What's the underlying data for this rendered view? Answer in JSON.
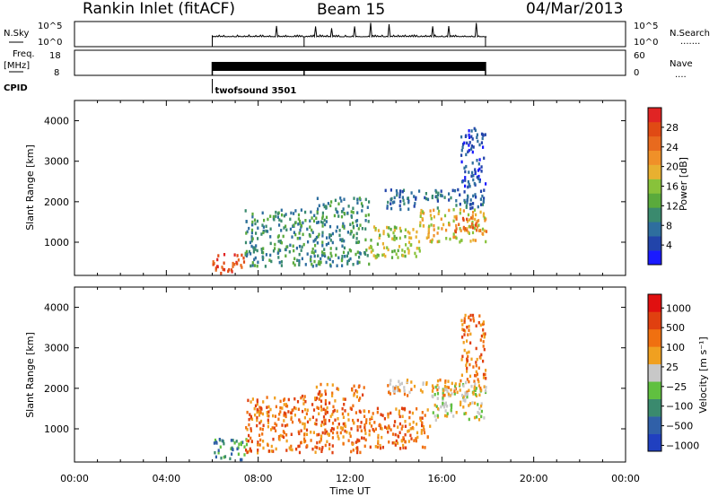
{
  "header": {
    "station": "Rankin Inlet (fitACF)",
    "beam": "Beam 15",
    "date": "04/Mar/2013"
  },
  "sky_panel": {
    "left_label": "N.Sky",
    "right_label": "N.Search",
    "right_legend": ".......",
    "left_ticks": [
      "10^5",
      "10^0"
    ],
    "right_ticks": [
      "10^5",
      "10^0"
    ]
  },
  "freq_panel": {
    "left_label": "Freq.",
    "left_unit": "[MHz]",
    "right_label": "Nave",
    "right_legend": "....",
    "left_ticks": [
      "18",
      "8"
    ],
    "right_ticks": [
      "60",
      "0"
    ]
  },
  "cpid": {
    "label": "CPID",
    "program": "twofsound 3501"
  },
  "chart_data": [
    {
      "type": "heatmap",
      "quantity": "Power",
      "ylabel": "Slant Range [km]",
      "xlabel": "Time UT",
      "x_range_hours": [
        0,
        24
      ],
      "y_range_km": [
        180,
        4500
      ],
      "y_ticks": [
        1000,
        2000,
        3000,
        4000
      ],
      "colorbar": {
        "label": "Power [dB]",
        "range": [
          0,
          32
        ],
        "ticks": [
          "4",
          "8",
          "12",
          "16",
          "20",
          "24",
          "28"
        ],
        "colors": [
          "#1a1aff",
          "#2244aa",
          "#2e6e9e",
          "#3a8a6e",
          "#5aaa3c",
          "#88c23a",
          "#e8b030",
          "#f09028",
          "#e86a1e",
          "#e04a14",
          "#e02424"
        ]
      },
      "scatter_blocks": [
        {
          "t0": 6.0,
          "t1": 7.4,
          "r0": 200,
          "r1": 700,
          "level": 9
        },
        {
          "t0": 7.4,
          "t1": 10.5,
          "r0": 400,
          "r1": 1800,
          "level": 3
        },
        {
          "t0": 10.5,
          "t1": 12.8,
          "r0": 400,
          "r1": 2100,
          "level": 3
        },
        {
          "t0": 12.8,
          "t1": 15.0,
          "r0": 600,
          "r1": 1400,
          "level": 5
        },
        {
          "t0": 15.0,
          "t1": 17.9,
          "r0": 1000,
          "r1": 1800,
          "level": 6
        },
        {
          "t0": 16.5,
          "t1": 17.9,
          "r0": 1200,
          "r1": 1600,
          "level": 8
        },
        {
          "t0": 13.5,
          "t1": 17.9,
          "r0": 1800,
          "r1": 2300,
          "level": 2
        },
        {
          "t0": 16.8,
          "t1": 17.9,
          "r0": 2300,
          "r1": 3800,
          "level": 1
        }
      ]
    },
    {
      "type": "heatmap",
      "quantity": "Velocity",
      "ylabel": "Slant Range [km]",
      "xlabel": "Time UT",
      "x_range_hours": [
        0,
        24
      ],
      "y_range_km": [
        180,
        4500
      ],
      "y_ticks": [
        1000,
        2000,
        3000,
        4000
      ],
      "colorbar": {
        "label": "Velocity [m s⁻¹]",
        "ticks": [
          "1000",
          "500",
          "100",
          "25",
          "−25",
          "−100",
          "−500",
          "−1000"
        ],
        "colors": [
          "#2040c0",
          "#3060a8",
          "#3a8a6e",
          "#60c040",
          "#c8c8c8",
          "#f0a020",
          "#f07010",
          "#e04010",
          "#e01010"
        ]
      },
      "scatter_blocks": [
        {
          "t0": 6.0,
          "t1": 7.5,
          "r0": 200,
          "r1": 800,
          "level": 2
        },
        {
          "t0": 7.4,
          "t1": 10.5,
          "r0": 400,
          "r1": 1800,
          "level": 6
        },
        {
          "t0": 10.5,
          "t1": 12.6,
          "r0": 400,
          "r1": 2100,
          "level": 6
        },
        {
          "t0": 12.6,
          "t1": 15.5,
          "r0": 500,
          "r1": 1500,
          "level": 6
        },
        {
          "t0": 15.5,
          "t1": 17.9,
          "r0": 1200,
          "r1": 2100,
          "level": 4
        },
        {
          "t0": 13.5,
          "t1": 17.9,
          "r0": 1800,
          "r1": 2200,
          "level": 5
        },
        {
          "t0": 16.8,
          "t1": 17.9,
          "r0": 2200,
          "r1": 3800,
          "level": 6
        }
      ]
    }
  ],
  "time_axis": {
    "ticks": [
      "00:00",
      "04:00",
      "08:00",
      "12:00",
      "16:00",
      "20:00",
      "00:00"
    ],
    "label": "Time UT"
  },
  "operation_hours": [
    6.0,
    17.9
  ],
  "break_hour": 10.0
}
